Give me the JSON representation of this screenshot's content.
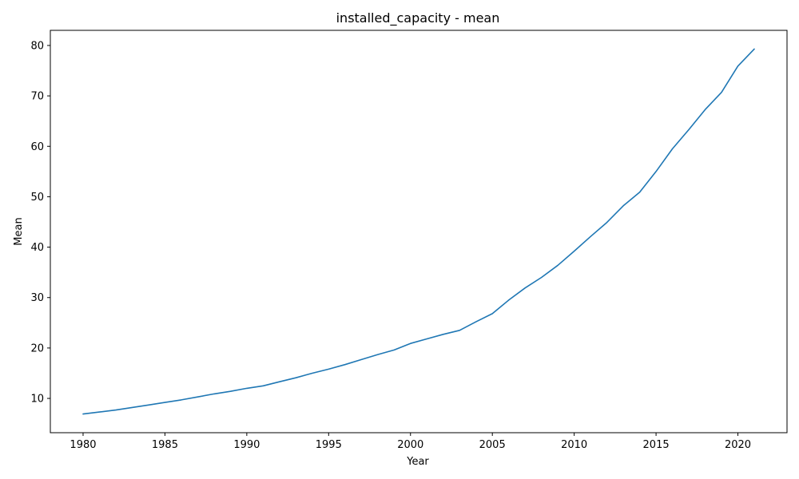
{
  "chart_data": {
    "type": "line",
    "title": "installed_capacity - mean",
    "xlabel": "Year",
    "ylabel": "Mean",
    "xlim": [
      1978,
      2023
    ],
    "ylim": [
      3.2,
      83
    ],
    "xticks": [
      1980,
      1985,
      1990,
      1995,
      2000,
      2005,
      2010,
      2015,
      2020
    ],
    "yticks": [
      10,
      20,
      30,
      40,
      50,
      60,
      70,
      80
    ],
    "grid": false,
    "line_color": "#1f77b4",
    "series": [
      {
        "x": [
          1980,
          1981,
          1982,
          1983,
          1984,
          1985,
          1986,
          1987,
          1988,
          1989,
          1990,
          1991,
          1992,
          1993,
          1994,
          1995,
          1996,
          1997,
          1998,
          1999,
          2000,
          2001,
          2002,
          2003,
          2004,
          2005,
          2006,
          2007,
          2008,
          2009,
          2010,
          2011,
          2012,
          2013,
          2014,
          2015,
          2016,
          2017,
          2018,
          2019,
          2020,
          2021
        ],
        "values": [
          6.9,
          7.3,
          7.7,
          8.2,
          8.7,
          9.2,
          9.7,
          10.3,
          10.9,
          11.4,
          12.0,
          12.5,
          13.3,
          14.1,
          15.0,
          15.8,
          16.7,
          17.7,
          18.7,
          19.6,
          20.9,
          21.8,
          22.7,
          23.5,
          25.2,
          26.8,
          29.5,
          31.9,
          34.0,
          36.4,
          39.2,
          42.1,
          44.9,
          48.2,
          50.9,
          55.0,
          59.5,
          63.3,
          67.3,
          70.7,
          75.9,
          79.3
        ]
      }
    ]
  }
}
